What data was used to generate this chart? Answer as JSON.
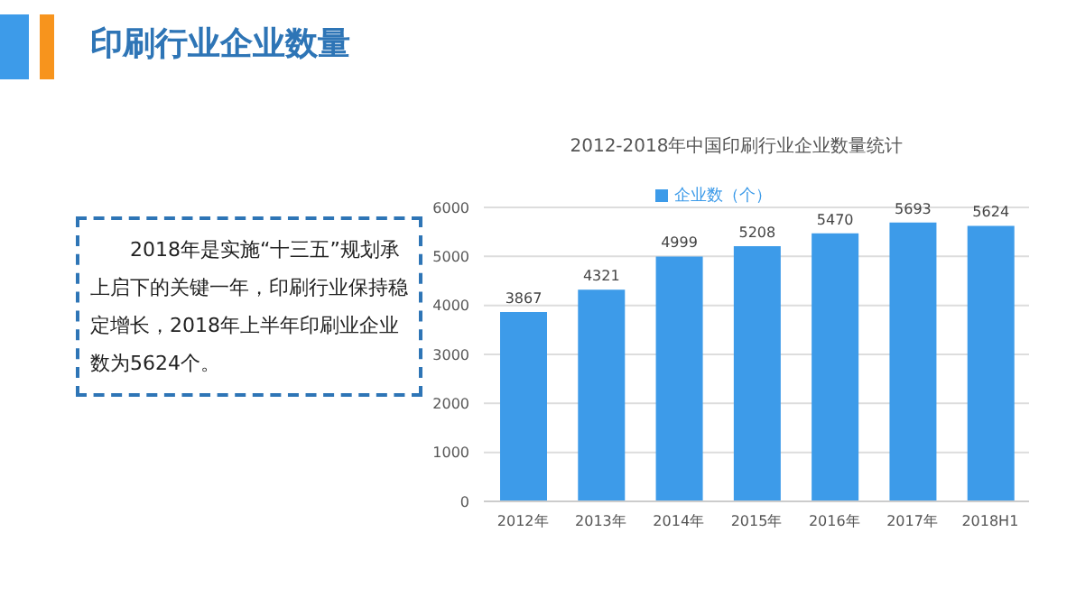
{
  "chart_data": {
    "type": "bar",
    "title": "印刷行业企业数量",
    "subtitle": "2012-2018年中国印刷行业企业数量统计",
    "categories": [
      "2012年",
      "2013年",
      "2014年",
      "2015年",
      "2016年",
      "2017年",
      "2018H1"
    ],
    "series": [
      {
        "name": "企业数（个）",
        "color": "#3d9be9",
        "values": [
          3867,
          4321,
          4999,
          5208,
          5470,
          5693,
          5624
        ]
      }
    ],
    "ylim": [
      0,
      6000
    ],
    "yticks": [
      0,
      1000,
      2000,
      3000,
      4000,
      5000,
      6000
    ],
    "grid": "y",
    "legend": "top",
    "data_labels": true,
    "annotations": [
      "2018年是实施“十三五”规划承上启下的关键一年，印刷行业保持稳定增长，2018年上半年印刷业企业数为5624个。"
    ]
  }
}
